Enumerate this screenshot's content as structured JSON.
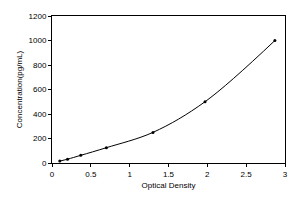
{
  "chart_data": {
    "type": "line",
    "x_label": "Optical Density",
    "y_label": "Concentration(pg/mL)",
    "x": [
      0.1,
      0.2,
      0.37,
      0.7,
      1.3,
      1.97,
      2.87
    ],
    "values": [
      15.6,
      31.2,
      62.5,
      125,
      250,
      500,
      1000
    ],
    "color": "#000000",
    "marker": "circle",
    "line_style": "solid",
    "xlim": [
      0,
      3
    ],
    "xticks": [
      0,
      0.5,
      1,
      1.5,
      2,
      2.5,
      3
    ],
    "ylim": [
      0,
      1200
    ],
    "yticks": [
      0,
      200,
      400,
      600,
      800,
      1000,
      1200
    ],
    "grid": false
  }
}
